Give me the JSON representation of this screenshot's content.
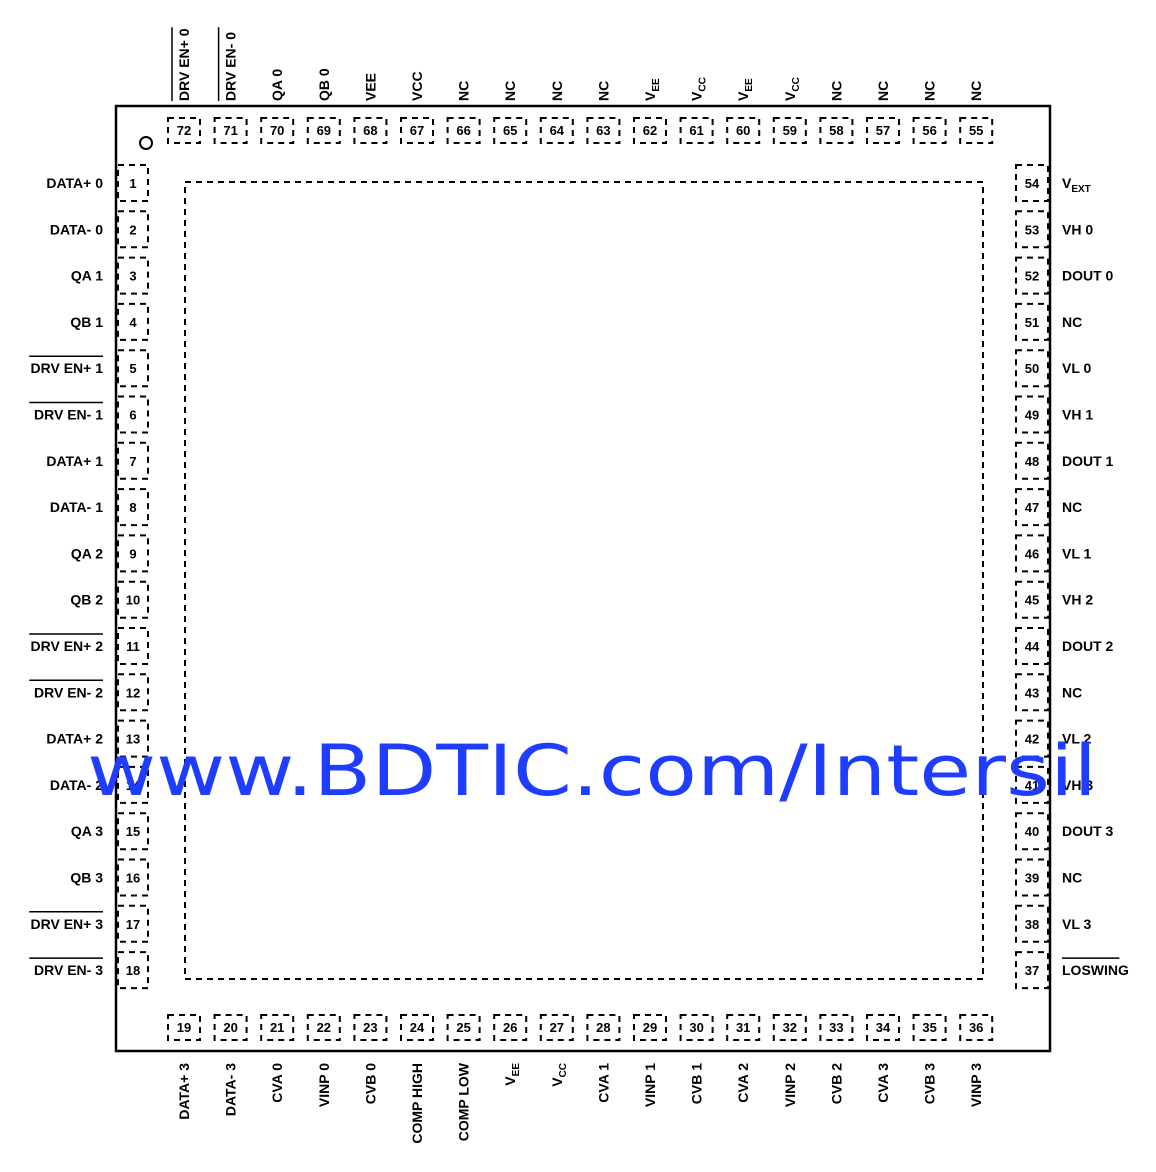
{
  "watermark": "www.BDTIC.com/Intersil",
  "pins": {
    "left": [
      {
        "num": "1",
        "label": "DATA+ 0"
      },
      {
        "num": "2",
        "label": "DATA- 0"
      },
      {
        "num": "3",
        "label": "QA 1"
      },
      {
        "num": "4",
        "label": "QB 1"
      },
      {
        "num": "5",
        "label": "DRV EN+ 1",
        "overbar": true
      },
      {
        "num": "6",
        "label": "DRV EN- 1",
        "overbar": true
      },
      {
        "num": "7",
        "label": "DATA+ 1"
      },
      {
        "num": "8",
        "label": "DATA- 1"
      },
      {
        "num": "9",
        "label": "QA 2"
      },
      {
        "num": "10",
        "label": "QB 2"
      },
      {
        "num": "11",
        "label": "DRV EN+ 2",
        "overbar": true
      },
      {
        "num": "12",
        "label": "DRV EN- 2",
        "overbar": true
      },
      {
        "num": "13",
        "label": "DATA+ 2"
      },
      {
        "num": "14",
        "label": "DATA- 2"
      },
      {
        "num": "15",
        "label": "QA 3"
      },
      {
        "num": "16",
        "label": "QB 3"
      },
      {
        "num": "17",
        "label": "DRV EN+ 3",
        "overbar": true
      },
      {
        "num": "18",
        "label": "DRV EN- 3",
        "overbar": true
      }
    ],
    "bottom": [
      {
        "num": "19",
        "label": "DATA+ 3"
      },
      {
        "num": "20",
        "label": "DATA- 3"
      },
      {
        "num": "21",
        "label": "CVA 0"
      },
      {
        "num": "22",
        "label": "VINP 0"
      },
      {
        "num": "23",
        "label": "CVB 0"
      },
      {
        "num": "24",
        "label": "COMP HIGH"
      },
      {
        "num": "25",
        "label": "COMP LOW"
      },
      {
        "num": "26",
        "label": "V",
        "sub": "EE"
      },
      {
        "num": "27",
        "label": "V",
        "sub": "CC"
      },
      {
        "num": "28",
        "label": "CVA 1"
      },
      {
        "num": "29",
        "label": "VINP 1"
      },
      {
        "num": "30",
        "label": "CVB 1"
      },
      {
        "num": "31",
        "label": "CVA 2"
      },
      {
        "num": "32",
        "label": "VINP 2"
      },
      {
        "num": "33",
        "label": "CVB 2"
      },
      {
        "num": "34",
        "label": "CVA 3"
      },
      {
        "num": "35",
        "label": "CVB 3"
      },
      {
        "num": "36",
        "label": "VINP 3"
      }
    ],
    "right": [
      {
        "num": "54",
        "label": "V",
        "sub": "EXT"
      },
      {
        "num": "53",
        "label": "VH 0"
      },
      {
        "num": "52",
        "label": "DOUT 0"
      },
      {
        "num": "51",
        "label": "NC"
      },
      {
        "num": "50",
        "label": "VL 0"
      },
      {
        "num": "49",
        "label": "VH 1"
      },
      {
        "num": "48",
        "label": "DOUT 1"
      },
      {
        "num": "47",
        "label": "NC"
      },
      {
        "num": "46",
        "label": "VL 1"
      },
      {
        "num": "45",
        "label": "VH 2"
      },
      {
        "num": "44",
        "label": "DOUT 2"
      },
      {
        "num": "43",
        "label": "NC"
      },
      {
        "num": "42",
        "label": "VL 2"
      },
      {
        "num": "41",
        "label": "VH 3"
      },
      {
        "num": "40",
        "label": "DOUT 3"
      },
      {
        "num": "39",
        "label": "NC"
      },
      {
        "num": "38",
        "label": "VL 3"
      },
      {
        "num": "37",
        "label": "LOSWING",
        "overbar": true
      }
    ],
    "top": [
      {
        "num": "72",
        "label": "DRV EN+ 0",
        "overbar": true
      },
      {
        "num": "71",
        "label": "DRV EN- 0",
        "overbar": true
      },
      {
        "num": "70",
        "label": "QA 0"
      },
      {
        "num": "69",
        "label": "QB 0"
      },
      {
        "num": "68",
        "label": "VEE"
      },
      {
        "num": "67",
        "label": "VCC"
      },
      {
        "num": "66",
        "label": "NC"
      },
      {
        "num": "65",
        "label": "NC"
      },
      {
        "num": "64",
        "label": "NC"
      },
      {
        "num": "63",
        "label": "NC"
      },
      {
        "num": "62",
        "label": "V",
        "sub": "EE"
      },
      {
        "num": "61",
        "label": "V",
        "sub": "CC"
      },
      {
        "num": "60",
        "label": "V",
        "sub": "EE"
      },
      {
        "num": "59",
        "label": "V",
        "sub": "CC"
      },
      {
        "num": "58",
        "label": "NC"
      },
      {
        "num": "57",
        "label": "NC"
      },
      {
        "num": "56",
        "label": "NC"
      },
      {
        "num": "55",
        "label": "NC"
      }
    ]
  }
}
